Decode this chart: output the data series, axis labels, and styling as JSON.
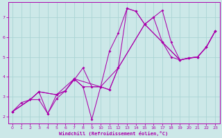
{
  "xlabel": "Windchill (Refroidissement éolien,°C)",
  "xlim": [
    -0.5,
    23.5
  ],
  "ylim": [
    1.65,
    7.75
  ],
  "xticks": [
    0,
    1,
    2,
    3,
    4,
    5,
    6,
    7,
    8,
    9,
    10,
    11,
    12,
    13,
    14,
    15,
    16,
    17,
    18,
    19,
    20,
    21,
    22,
    23
  ],
  "yticks": [
    2,
    3,
    4,
    5,
    6,
    7
  ],
  "bg_color": "#cce8e8",
  "grid_color": "#aad4d4",
  "line_color": "#aa00aa",
  "series1_x": [
    0,
    1,
    2,
    3,
    4,
    5,
    6,
    7,
    8,
    9,
    10,
    11,
    12,
    13,
    14,
    15,
    16,
    17,
    18,
    19,
    20,
    21,
    22,
    23
  ],
  "series1_y": [
    2.25,
    2.7,
    2.85,
    2.85,
    2.15,
    2.9,
    3.3,
    3.85,
    4.45,
    3.5,
    3.5,
    5.3,
    6.2,
    7.45,
    7.3,
    6.65,
    7.0,
    7.35,
    5.75,
    4.85,
    4.95,
    5.0,
    5.5,
    6.3
  ],
  "series2_x": [
    0,
    2,
    3,
    4,
    5,
    6,
    7,
    8,
    9,
    10,
    11,
    12,
    13,
    14,
    15,
    16,
    17,
    18,
    19,
    20,
    21,
    22,
    23
  ],
  "series2_y": [
    2.25,
    2.85,
    3.25,
    2.15,
    3.1,
    3.3,
    3.9,
    3.5,
    1.85,
    3.5,
    3.35,
    4.45,
    7.45,
    7.3,
    6.65,
    7.0,
    5.75,
    5.0,
    4.85,
    4.95,
    5.0,
    5.5,
    6.3
  ],
  "series3_x": [
    0,
    2,
    3,
    5,
    6,
    7,
    8,
    10,
    11,
    12,
    15,
    17,
    19,
    20,
    21,
    22,
    23
  ],
  "series3_y": [
    2.25,
    2.85,
    3.25,
    3.1,
    3.3,
    3.9,
    3.5,
    3.5,
    3.35,
    4.45,
    6.65,
    5.75,
    4.85,
    4.95,
    5.0,
    5.5,
    6.3
  ],
  "series4_x": [
    0,
    2,
    3,
    5,
    7,
    10,
    12,
    15,
    17,
    19,
    21,
    22,
    23
  ],
  "series4_y": [
    2.25,
    2.85,
    3.25,
    3.1,
    3.9,
    3.5,
    4.45,
    6.65,
    5.75,
    4.85,
    5.0,
    5.5,
    6.3
  ]
}
